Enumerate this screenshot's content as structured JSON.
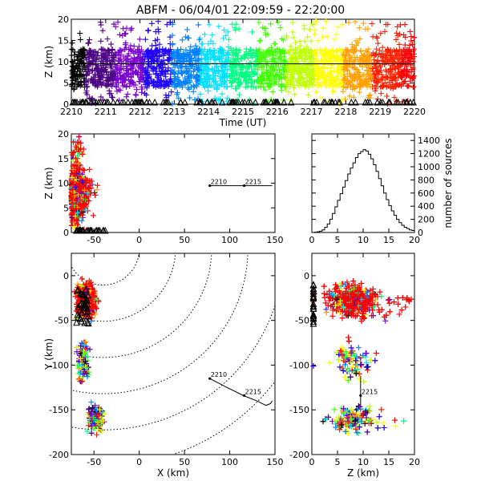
{
  "title": "ABFM - 06/04/01 22:09:59 - 22:20:00",
  "chart_data": [
    {
      "id": "time-height",
      "type": "scatter",
      "xlabel": "Time (UT)",
      "ylabel": "Z (km)",
      "xlim": [
        2210,
        2220
      ],
      "ylim": [
        0,
        20
      ],
      "xticks": [
        2210,
        2211,
        2212,
        2213,
        2214,
        2215,
        2216,
        2217,
        2218,
        2219,
        2220
      ],
      "yticks": [
        0,
        5,
        10,
        15,
        20
      ],
      "reference_line_z": 9.5,
      "source_band_z": [
        4,
        13
      ],
      "stations_z": 0,
      "color_by": "time"
    },
    {
      "id": "x-z",
      "type": "scatter",
      "xlabel": "",
      "ylabel": "Z (km)",
      "xlim": [
        -75,
        150
      ],
      "ylim": [
        0,
        20
      ],
      "xticks": [
        -50,
        0,
        50,
        100,
        150
      ],
      "yticks": [
        0,
        5,
        10,
        15,
        20
      ],
      "cluster_x": [
        -75,
        -35
      ],
      "track": {
        "x": [
          78,
          147
        ],
        "z": 9.5
      },
      "track_labels": [
        {
          "text": "2210",
          "x": 78,
          "z": 9.5
        },
        {
          "text": "2215",
          "x": 116,
          "z": 9.5
        }
      ]
    },
    {
      "id": "histogram",
      "type": "bar",
      "xlabel": "",
      "ylabel": "number of sources",
      "xlim": [
        0,
        20
      ],
      "ylim": [
        0,
        1500
      ],
      "xticks": [
        0,
        5,
        10,
        15,
        20
      ],
      "yticks": [
        0,
        200,
        400,
        600,
        800,
        1000,
        1200,
        1400
      ],
      "bin_width": 0.5,
      "bins_start": 0,
      "values": [
        0,
        5,
        10,
        20,
        40,
        80,
        130,
        200,
        290,
        390,
        490,
        590,
        690,
        790,
        890,
        980,
        1060,
        1140,
        1200,
        1230,
        1260,
        1240,
        1190,
        1120,
        1030,
        930,
        820,
        710,
        600,
        500,
        410,
        330,
        260,
        200,
        150,
        110,
        80,
        60,
        40,
        30
      ]
    },
    {
      "id": "x-y",
      "type": "scatter",
      "xlabel": "X (km)",
      "ylabel": "Y (km)",
      "xlim": [
        -75,
        150
      ],
      "ylim": [
        -200,
        25
      ],
      "xticks": [
        -50,
        0,
        50,
        100,
        150
      ],
      "yticks": [
        -200,
        -150,
        -100,
        -50,
        0
      ],
      "range_rings_center": [
        -40,
        30
      ],
      "range_rings_radius": [
        40,
        80,
        120,
        160,
        200,
        240
      ],
      "track": {
        "x": [
          78,
          95,
          115,
          130,
          140,
          145,
          147
        ],
        "y": [
          -115,
          -124,
          -134,
          -140,
          -145,
          -143,
          -140
        ]
      },
      "track_labels": [
        {
          "text": "2210",
          "x": 78,
          "y": -115
        },
        {
          "text": "2215",
          "x": 116,
          "y": -134
        }
      ]
    },
    {
      "id": "z-y",
      "type": "scatter",
      "xlabel": "Z (km)",
      "ylabel": "",
      "xlim": [
        0,
        20
      ],
      "ylim": [
        -200,
        25
      ],
      "xticks": [
        0,
        5,
        10,
        15,
        20
      ],
      "yticks": [
        -200,
        -150,
        -100,
        -50,
        0
      ],
      "track_label": {
        "text": "2215",
        "z": 9.5,
        "y": -134
      }
    }
  ],
  "colors": {
    "rainbow": [
      "#000000",
      "#4b0082",
      "#7a00d0",
      "#2000ff",
      "#0080ff",
      "#00e0ff",
      "#00ff80",
      "#40ff00",
      "#c0ff00",
      "#ffff00",
      "#ffa000",
      "#ff2000",
      "#ff0000"
    ],
    "axes": "#000000",
    "background": "#ffffff"
  }
}
